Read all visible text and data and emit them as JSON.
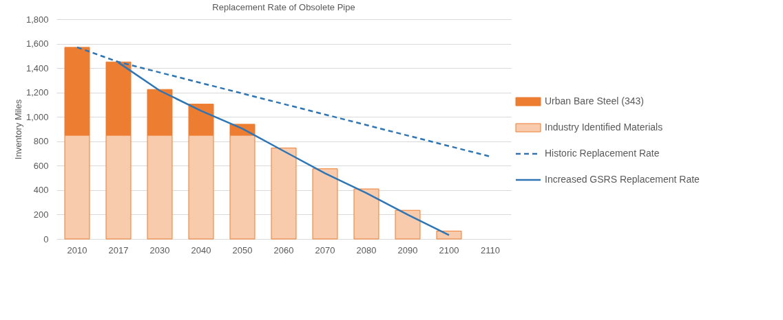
{
  "chart_data": {
    "type": "bar",
    "title": "Replacement Rate of Obsolete Pipe",
    "ylabel": "Inventory Miles",
    "categories": [
      "2010",
      "2017",
      "2030",
      "2040",
      "2050",
      "2060",
      "2070",
      "2080",
      "2090",
      "2100",
      "2110"
    ],
    "stacked": true,
    "series": [
      {
        "name": "Industry Identified Materials",
        "color": "#f8cbad",
        "values": [
          850,
          850,
          850,
          850,
          850,
          745,
          575,
          410,
          235,
          65,
          null
        ]
      },
      {
        "name": "Urban Bare Steel (343)",
        "color": "#ed7d31",
        "values": [
          720,
          600,
          375,
          255,
          90,
          null,
          null,
          null,
          null,
          null,
          null
        ]
      },
      {
        "name": "Historic Replacement Rate",
        "type": "line",
        "line_style": "dashed",
        "color": "#2e75b6",
        "values": [
          1570,
          1450,
          null,
          null,
          null,
          null,
          null,
          null,
          null,
          null,
          675
        ]
      },
      {
        "name": "Increased GSRS Replacement Rate",
        "type": "line",
        "line_style": "solid",
        "color": "#2e75b6",
        "values": [
          null,
          1445,
          1215,
          1050,
          904,
          720,
          538,
          376,
          199,
          32,
          null
        ]
      }
    ],
    "ylim": [
      0,
      1800
    ],
    "yticks": [
      0,
      200,
      400,
      600,
      800,
      {
        "value": 1000,
        "label": "1,000"
      },
      {
        "value": 1200,
        "label": "1,200"
      },
      {
        "value": 1400,
        "label": "1,400"
      },
      {
        "value": 1600,
        "label": "1,600"
      },
      {
        "value": 1800,
        "label": "1,800"
      }
    ],
    "grid": "y",
    "legend": "right"
  }
}
